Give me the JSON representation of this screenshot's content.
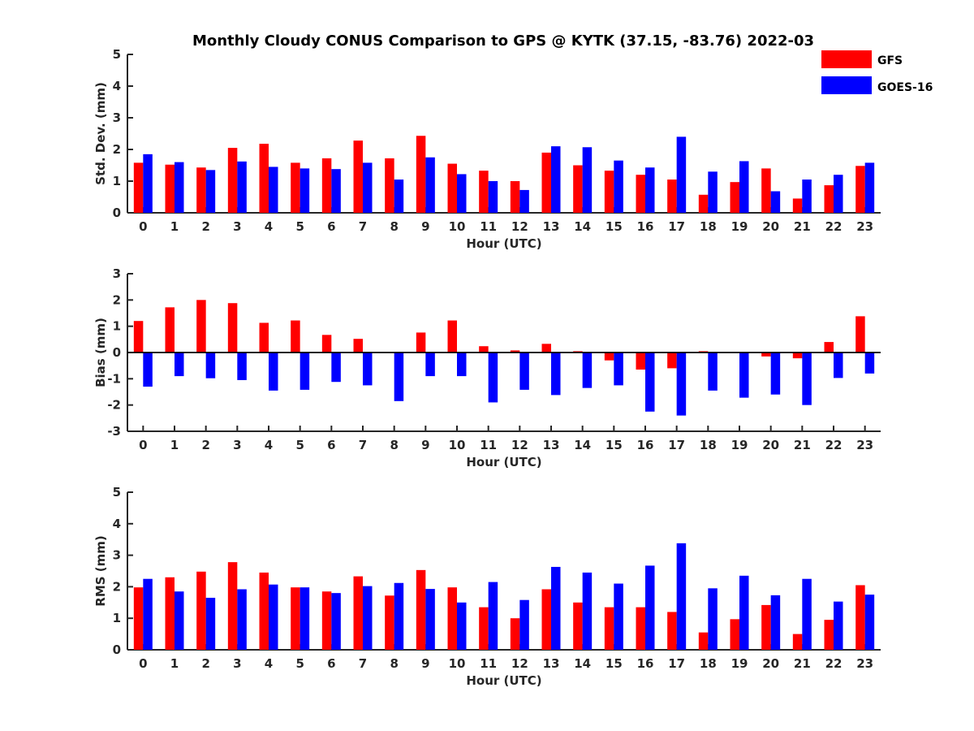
{
  "title": "Monthly Cloudy CONUS Comparison to GPS @ KYTK (37.15, -83.76) 2022-03",
  "legend": {
    "position": "top-right",
    "entries": [
      {
        "name": "GFS",
        "color": "#ff0000"
      },
      {
        "name": "GOES-16",
        "color": "#0000ff"
      }
    ]
  },
  "chart_data": [
    {
      "type": "bar",
      "xlabel": "Hour (UTC)",
      "ylabel": "Std. Dev. (mm)",
      "ylim": [
        0,
        5
      ],
      "yticks": [
        0,
        1,
        2,
        3,
        4,
        5
      ],
      "categories": [
        "0",
        "1",
        "2",
        "3",
        "4",
        "5",
        "6",
        "7",
        "8",
        "9",
        "10",
        "11",
        "12",
        "13",
        "14",
        "15",
        "16",
        "17",
        "18",
        "19",
        "20",
        "21",
        "22",
        "23"
      ],
      "series": [
        {
          "name": "GFS",
          "color": "#ff0000",
          "values": [
            1.58,
            1.52,
            1.43,
            2.05,
            2.18,
            1.58,
            1.72,
            2.28,
            1.72,
            2.43,
            1.55,
            1.33,
            1.0,
            1.9,
            1.5,
            1.33,
            1.2,
            1.05,
            0.57,
            0.97,
            1.4,
            0.45,
            0.87,
            1.48
          ]
        },
        {
          "name": "GOES-16",
          "color": "#0000ff",
          "values": [
            1.85,
            1.6,
            1.35,
            1.62,
            1.45,
            1.4,
            1.38,
            1.58,
            1.05,
            1.75,
            1.22,
            1.0,
            0.72,
            2.1,
            2.07,
            1.65,
            1.43,
            2.4,
            1.3,
            1.63,
            0.68,
            1.05,
            1.2,
            1.58
          ]
        }
      ]
    },
    {
      "type": "bar",
      "xlabel": "Hour (UTC)",
      "ylabel": "Bias (mm)",
      "ylim": [
        -3,
        3
      ],
      "yticks": [
        -3,
        -2,
        -1,
        0,
        1,
        2,
        3
      ],
      "categories": [
        "0",
        "1",
        "2",
        "3",
        "4",
        "5",
        "6",
        "7",
        "8",
        "9",
        "10",
        "11",
        "12",
        "13",
        "14",
        "15",
        "16",
        "17",
        "18",
        "19",
        "20",
        "21",
        "22",
        "23"
      ],
      "series": [
        {
          "name": "GFS",
          "color": "#ff0000",
          "values": [
            1.2,
            1.72,
            2.0,
            1.88,
            1.13,
            1.22,
            0.67,
            0.52,
            0.0,
            0.76,
            1.22,
            0.24,
            0.08,
            0.33,
            0.05,
            -0.3,
            -0.65,
            -0.6,
            0.05,
            0.0,
            -0.15,
            -0.22,
            0.4,
            1.38
          ]
        },
        {
          "name": "GOES-16",
          "color": "#0000ff",
          "values": [
            -1.3,
            -0.9,
            -0.98,
            -1.05,
            -1.45,
            -1.42,
            -1.12,
            -1.25,
            -1.85,
            -0.9,
            -0.9,
            -1.9,
            -1.42,
            -1.62,
            -1.35,
            -1.25,
            -2.25,
            -2.4,
            -1.45,
            -1.72,
            -1.6,
            -2.0,
            -0.97,
            -0.8
          ]
        }
      ]
    },
    {
      "type": "bar",
      "xlabel": "Hour (UTC)",
      "ylabel": "RMS (mm)",
      "ylim": [
        0,
        5
      ],
      "yticks": [
        0,
        1,
        2,
        3,
        4,
        5
      ],
      "categories": [
        "0",
        "1",
        "2",
        "3",
        "4",
        "5",
        "6",
        "7",
        "8",
        "9",
        "10",
        "11",
        "12",
        "13",
        "14",
        "15",
        "16",
        "17",
        "18",
        "19",
        "20",
        "21",
        "22",
        "23"
      ],
      "series": [
        {
          "name": "GFS",
          "color": "#ff0000",
          "values": [
            1.98,
            2.3,
            2.48,
            2.78,
            2.45,
            1.98,
            1.85,
            2.33,
            1.72,
            2.53,
            1.98,
            1.35,
            1.0,
            1.92,
            1.5,
            1.35,
            1.35,
            1.2,
            0.55,
            0.97,
            1.42,
            0.5,
            0.95,
            2.05
          ]
        },
        {
          "name": "GOES-16",
          "color": "#0000ff",
          "values": [
            2.25,
            1.85,
            1.65,
            1.92,
            2.07,
            1.98,
            1.8,
            2.02,
            2.12,
            1.93,
            1.5,
            2.15,
            1.58,
            2.63,
            2.45,
            2.1,
            2.67,
            3.38,
            1.95,
            2.35,
            1.73,
            2.25,
            1.53,
            1.75
          ]
        }
      ]
    }
  ]
}
